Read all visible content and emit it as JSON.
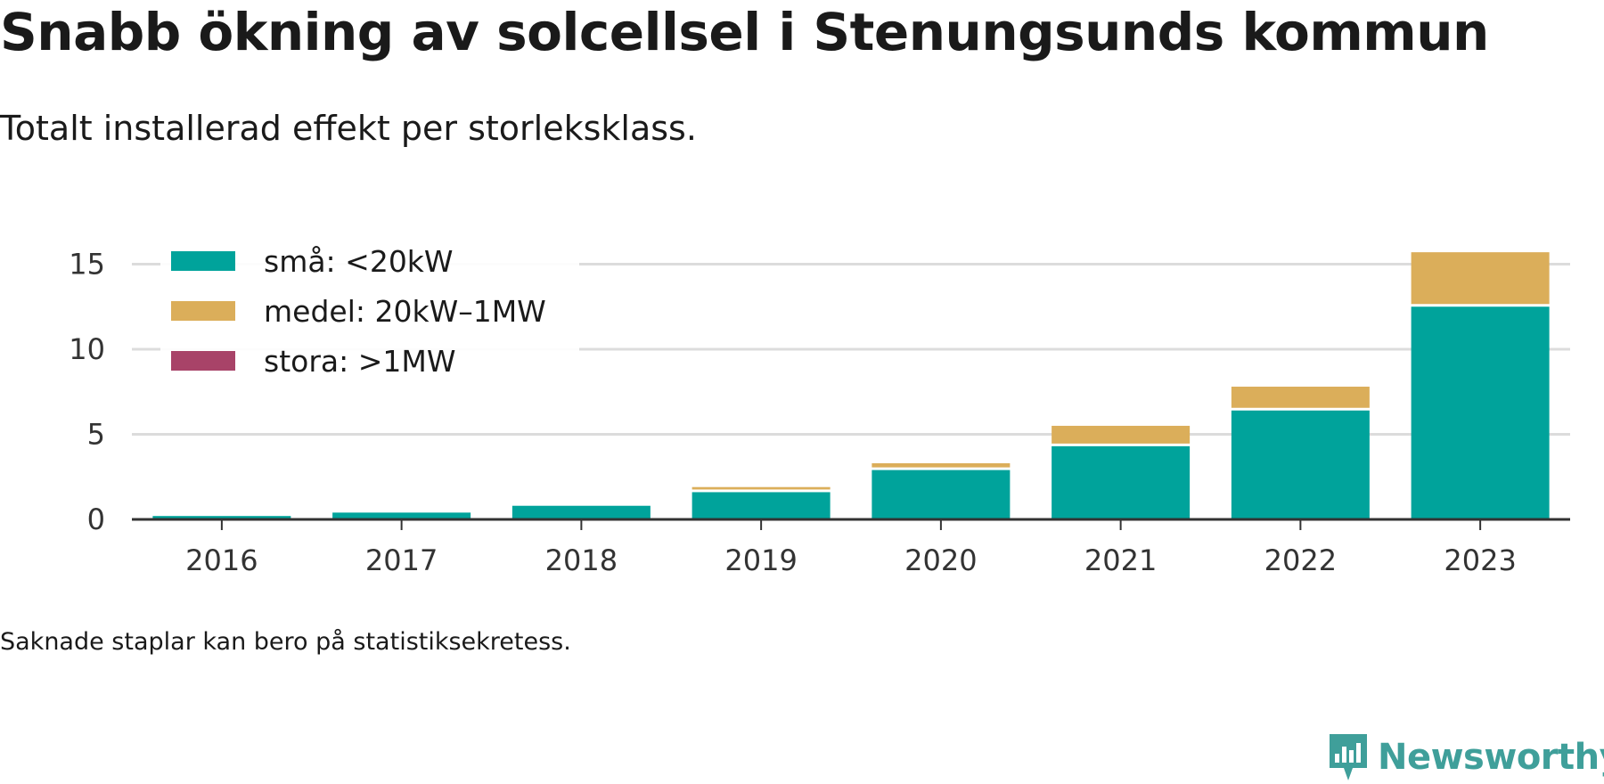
{
  "title": "Snabb ökning av solcellsel i Stenungsunds kommun",
  "subtitle": "Totalt installerad effekt per storleksklass.",
  "footnote": "Saknade staplar kan bero på statistiksekretess.",
  "brand": {
    "name": "Newsworthy",
    "icon": "newsworthy-logo-icon",
    "color": "#3f9f9a"
  },
  "chart_data": {
    "type": "bar",
    "stacked": true,
    "categories": [
      "2016",
      "2017",
      "2018",
      "2019",
      "2020",
      "2021",
      "2022",
      "2023"
    ],
    "series": [
      {
        "name": "små: <20kW",
        "color": "#00a39b",
        "values": [
          0.2,
          0.4,
          0.8,
          1.6,
          2.9,
          4.3,
          6.4,
          12.5
        ]
      },
      {
        "name": "medel: 20kW–1MW",
        "color": "#dbae5a",
        "values": [
          0.0,
          0.0,
          0.0,
          0.3,
          0.4,
          1.2,
          1.4,
          3.2
        ]
      },
      {
        "name": "stora: >1MW",
        "color": "#a84368",
        "values": [
          0,
          0,
          0,
          0,
          0,
          0,
          0,
          0
        ]
      }
    ],
    "y_ticks": [
      0,
      5,
      10,
      15
    ],
    "ylim": [
      0,
      16.5
    ],
    "xlabel": "",
    "ylabel": "",
    "grid": true,
    "legend_position": "top-left"
  }
}
